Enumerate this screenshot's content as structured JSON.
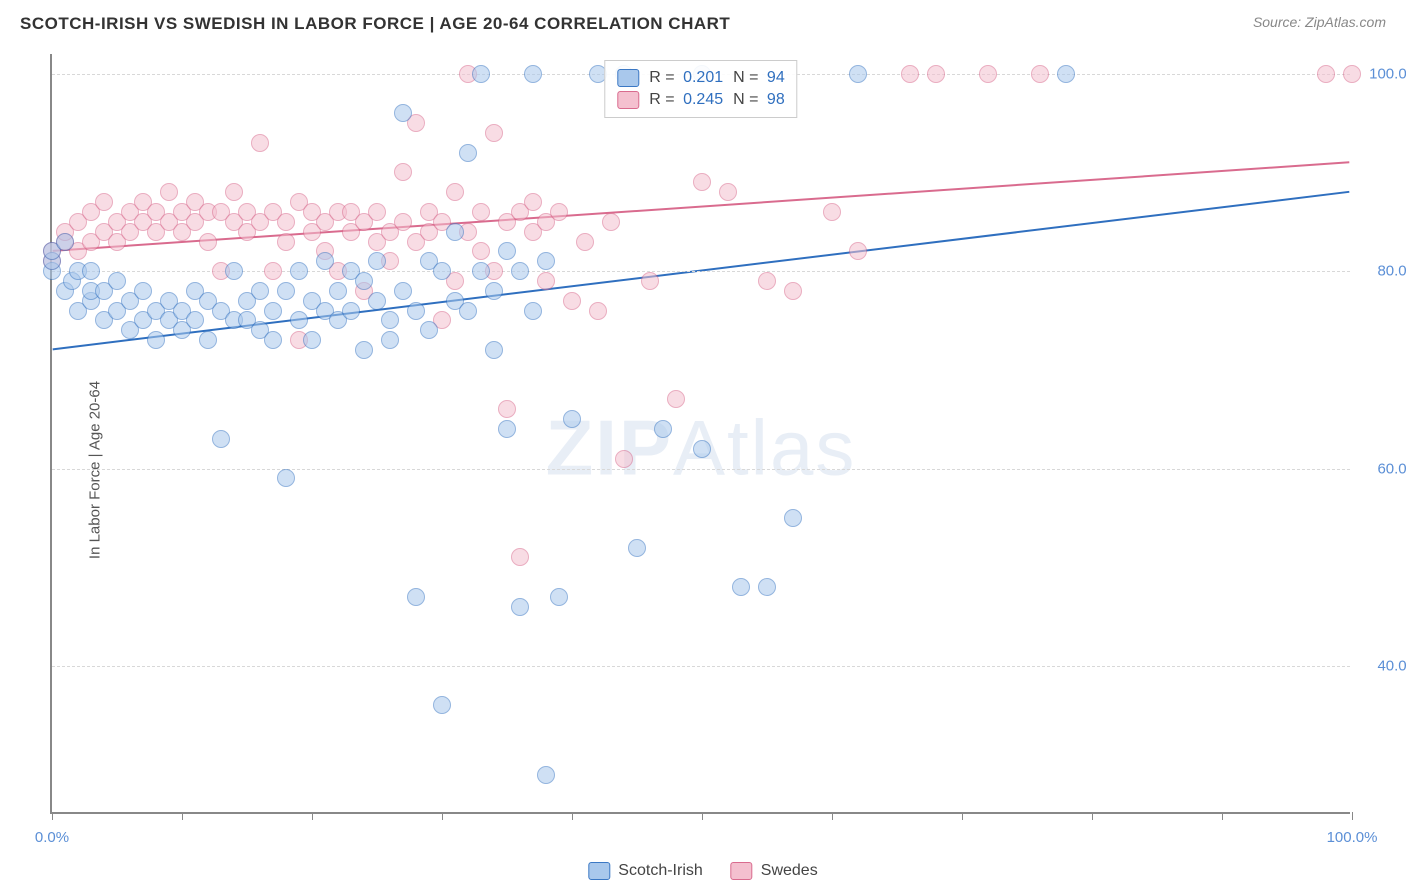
{
  "header": {
    "title": "SCOTCH-IRISH VS SWEDISH IN LABOR FORCE | AGE 20-64 CORRELATION CHART",
    "source": "Source: ZipAtlas.com"
  },
  "watermark": {
    "zip": "ZIP",
    "atlas": "Atlas"
  },
  "axes": {
    "y_label": "In Labor Force | Age 20-64",
    "x_min": 0,
    "x_max": 100,
    "y_min": 25,
    "y_max": 102,
    "x_tick_labels": {
      "left": "0.0%",
      "right": "100.0%"
    },
    "x_tick_positions": [
      0,
      10,
      20,
      30,
      40,
      50,
      60,
      70,
      80,
      90,
      100
    ],
    "y_ticks": [
      {
        "v": 40,
        "label": "40.0%"
      },
      {
        "v": 60,
        "label": "60.0%"
      },
      {
        "v": 80,
        "label": "80.0%"
      },
      {
        "v": 100,
        "label": "100.0%"
      }
    ],
    "grid_color": "#d8d8d8",
    "axis_color": "#888888",
    "tick_label_color": "#5b8fd6"
  },
  "legend_top": {
    "rows": [
      {
        "cls": "blue",
        "r_label": "R = ",
        "r": "0.201",
        "n_label": "N = ",
        "n": "94"
      },
      {
        "cls": "pink",
        "r_label": "R = ",
        "r": "0.245",
        "n_label": "N = ",
        "n": "98"
      }
    ]
  },
  "legend_bottom": {
    "items": [
      {
        "cls": "blue",
        "label": "Scotch-Irish"
      },
      {
        "cls": "pink",
        "label": "Swedes"
      }
    ]
  },
  "trend_lines": {
    "blue": {
      "x1": 0,
      "y1": 72,
      "x2": 100,
      "y2": 88,
      "color": "#2f6fbf",
      "width": 2
    },
    "pink": {
      "x1": 0,
      "y1": 82,
      "x2": 100,
      "y2": 91,
      "color": "#d96b8e",
      "width": 2
    }
  },
  "series": {
    "blue": {
      "color_fill": "#a9c8ec",
      "color_stroke": "#3b78c4",
      "marker_size": 18,
      "opacity": 0.55,
      "points": [
        [
          0,
          80
        ],
        [
          0,
          81
        ],
        [
          0,
          82
        ],
        [
          1,
          83
        ],
        [
          1,
          78
        ],
        [
          1.5,
          79
        ],
        [
          2,
          80
        ],
        [
          2,
          76
        ],
        [
          3,
          77
        ],
        [
          3,
          78
        ],
        [
          3,
          80
        ],
        [
          4,
          75
        ],
        [
          4,
          78
        ],
        [
          5,
          76
        ],
        [
          5,
          79
        ],
        [
          6,
          77
        ],
        [
          6,
          74
        ],
        [
          7,
          75
        ],
        [
          7,
          78
        ],
        [
          8,
          76
        ],
        [
          8,
          73
        ],
        [
          9,
          77
        ],
        [
          9,
          75
        ],
        [
          10,
          76
        ],
        [
          10,
          74
        ],
        [
          11,
          78
        ],
        [
          11,
          75
        ],
        [
          12,
          73
        ],
        [
          12,
          77
        ],
        [
          13,
          63
        ],
        [
          13,
          76
        ],
        [
          14,
          75
        ],
        [
          14,
          80
        ],
        [
          15,
          77
        ],
        [
          15,
          75
        ],
        [
          16,
          74
        ],
        [
          16,
          78
        ],
        [
          17,
          76
        ],
        [
          17,
          73
        ],
        [
          18,
          78
        ],
        [
          18,
          59
        ],
        [
          19,
          75
        ],
        [
          19,
          80
        ],
        [
          20,
          77
        ],
        [
          20,
          73
        ],
        [
          21,
          76
        ],
        [
          21,
          81
        ],
        [
          22,
          75
        ],
        [
          22,
          78
        ],
        [
          23,
          80
        ],
        [
          23,
          76
        ],
        [
          24,
          72
        ],
        [
          24,
          79
        ],
        [
          25,
          77
        ],
        [
          25,
          81
        ],
        [
          26,
          75
        ],
        [
          26,
          73
        ],
        [
          27,
          96
        ],
        [
          27,
          78
        ],
        [
          28,
          47
        ],
        [
          28,
          76
        ],
        [
          29,
          81
        ],
        [
          29,
          74
        ],
        [
          30,
          36
        ],
        [
          30,
          80
        ],
        [
          31,
          77
        ],
        [
          31,
          84
        ],
        [
          32,
          92
        ],
        [
          32,
          76
        ],
        [
          33,
          80
        ],
        [
          33,
          100
        ],
        [
          34,
          72
        ],
        [
          34,
          78
        ],
        [
          35,
          64
        ],
        [
          35,
          82
        ],
        [
          36,
          46
        ],
        [
          36,
          80
        ],
        [
          37,
          100
        ],
        [
          37,
          76
        ],
        [
          38,
          29
        ],
        [
          38,
          81
        ],
        [
          39,
          47
        ],
        [
          40,
          65
        ],
        [
          42,
          100
        ],
        [
          44,
          100
        ],
        [
          45,
          52
        ],
        [
          47,
          64
        ],
        [
          50,
          62
        ],
        [
          50,
          100
        ],
        [
          53,
          48
        ],
        [
          55,
          48
        ],
        [
          57,
          55
        ],
        [
          62,
          100
        ],
        [
          78,
          100
        ]
      ]
    },
    "pink": {
      "color_fill": "#f4c0cf",
      "color_stroke": "#d96b8e",
      "marker_size": 18,
      "opacity": 0.55,
      "points": [
        [
          0,
          81
        ],
        [
          0,
          82
        ],
        [
          1,
          83
        ],
        [
          1,
          84
        ],
        [
          2,
          85
        ],
        [
          2,
          82
        ],
        [
          3,
          86
        ],
        [
          3,
          83
        ],
        [
          4,
          84
        ],
        [
          4,
          87
        ],
        [
          5,
          85
        ],
        [
          5,
          83
        ],
        [
          6,
          86
        ],
        [
          6,
          84
        ],
        [
          7,
          87
        ],
        [
          7,
          85
        ],
        [
          8,
          84
        ],
        [
          8,
          86
        ],
        [
          9,
          85
        ],
        [
          9,
          88
        ],
        [
          10,
          86
        ],
        [
          10,
          84
        ],
        [
          11,
          87
        ],
        [
          11,
          85
        ],
        [
          12,
          86
        ],
        [
          12,
          83
        ],
        [
          13,
          80
        ],
        [
          13,
          86
        ],
        [
          14,
          85
        ],
        [
          14,
          88
        ],
        [
          15,
          86
        ],
        [
          15,
          84
        ],
        [
          16,
          93
        ],
        [
          16,
          85
        ],
        [
          17,
          86
        ],
        [
          17,
          80
        ],
        [
          18,
          85
        ],
        [
          18,
          83
        ],
        [
          19,
          87
        ],
        [
          19,
          73
        ],
        [
          20,
          86
        ],
        [
          20,
          84
        ],
        [
          21,
          85
        ],
        [
          21,
          82
        ],
        [
          22,
          86
        ],
        [
          22,
          80
        ],
        [
          23,
          84
        ],
        [
          23,
          86
        ],
        [
          24,
          78
        ],
        [
          24,
          85
        ],
        [
          25,
          83
        ],
        [
          25,
          86
        ],
        [
          26,
          84
        ],
        [
          26,
          81
        ],
        [
          27,
          90
        ],
        [
          27,
          85
        ],
        [
          28,
          95
        ],
        [
          28,
          83
        ],
        [
          29,
          84
        ],
        [
          29,
          86
        ],
        [
          30,
          75
        ],
        [
          30,
          85
        ],
        [
          31,
          88
        ],
        [
          31,
          79
        ],
        [
          32,
          84
        ],
        [
          32,
          100
        ],
        [
          33,
          86
        ],
        [
          33,
          82
        ],
        [
          34,
          80
        ],
        [
          34,
          94
        ],
        [
          35,
          66
        ],
        [
          35,
          85
        ],
        [
          36,
          51
        ],
        [
          36,
          86
        ],
        [
          37,
          87
        ],
        [
          37,
          84
        ],
        [
          38,
          85
        ],
        [
          38,
          79
        ],
        [
          39,
          86
        ],
        [
          40,
          77
        ],
        [
          41,
          83
        ],
        [
          42,
          76
        ],
        [
          43,
          85
        ],
        [
          44,
          61
        ],
        [
          46,
          79
        ],
        [
          48,
          67
        ],
        [
          50,
          89
        ],
        [
          52,
          88
        ],
        [
          55,
          79
        ],
        [
          57,
          78
        ],
        [
          60,
          86
        ],
        [
          62,
          82
        ],
        [
          66,
          100
        ],
        [
          68,
          100
        ],
        [
          72,
          100
        ],
        [
          76,
          100
        ],
        [
          98,
          100
        ],
        [
          100,
          100
        ]
      ]
    }
  }
}
